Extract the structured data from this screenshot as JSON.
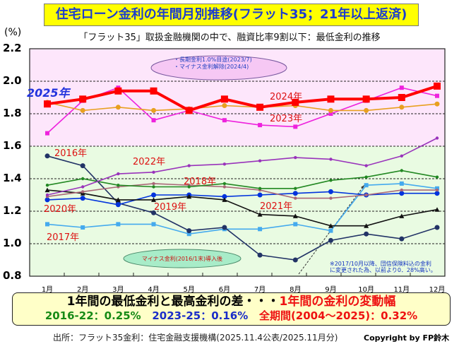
{
  "title": "住宅ローン金利の年間月別推移(フラット35；21年以上返済)",
  "subtitle": "「フラット35」取扱金融機関の中で、融資比率9割以下：最低金利の推移",
  "colors": {
    "upper_band": "#fde6fb",
    "lower_band": "#e9fbe2",
    "title_bg": "#ffff00",
    "title_text": "#1a3cd0"
  },
  "chart_data": {
    "type": "line",
    "ylabel": "(%)",
    "ylim": [
      0.8,
      2.2
    ],
    "yticks": [
      "0.8",
      "1.0",
      "1.2",
      "1.4",
      "1.6",
      "1.8",
      "2.0",
      "2.2"
    ],
    "categories": [
      "1月",
      "2月",
      "3月",
      "4月",
      "5月",
      "6月",
      "7月",
      "8月",
      "9月",
      "10月",
      "11月",
      "12月"
    ],
    "grid": true,
    "series": [
      {
        "name": "2025年",
        "color": "#ff0000",
        "marker": "square",
        "values": [
          1.86,
          1.89,
          1.94,
          1.94,
          1.82,
          1.89,
          1.84,
          1.87,
          1.89,
          1.89,
          1.9,
          1.97
        ]
      },
      {
        "name": "2024年",
        "color": "#e8a020",
        "marker": "circle",
        "values": [
          1.87,
          1.82,
          1.84,
          1.82,
          1.83,
          1.85,
          1.84,
          1.85,
          1.82,
          1.82,
          1.84,
          1.86
        ]
      },
      {
        "name": "2023年",
        "color": "#ee22dd",
        "marker": "square",
        "values": [
          1.68,
          1.88,
          1.96,
          1.76,
          1.82,
          1.76,
          1.73,
          1.72,
          1.8,
          1.88,
          1.96,
          1.91
        ]
      },
      {
        "name": "2022年",
        "color": "#9933bb",
        "marker": "plus",
        "values": [
          1.3,
          1.35,
          1.43,
          1.44,
          1.48,
          1.49,
          1.51,
          1.53,
          1.52,
          1.48,
          1.54,
          1.65
        ]
      },
      {
        "color": "#228822",
        "marker": "plus",
        "values": [
          1.36,
          1.4,
          1.36,
          1.35,
          1.35,
          1.37,
          1.34,
          1.34,
          1.39,
          1.41,
          1.45,
          1.41
        ]
      },
      {
        "name": "2018年",
        "color": "#aa6677",
        "marker": "plus",
        "values": [
          1.29,
          1.32,
          1.35,
          1.37,
          1.36,
          1.35,
          1.33,
          1.28,
          1.28,
          1.3,
          1.33,
          1.33
        ]
      },
      {
        "name": "2019年",
        "color": "#111111",
        "marker": "triangle",
        "values": [
          1.33,
          1.31,
          1.27,
          1.27,
          1.29,
          1.27,
          1.18,
          1.17,
          1.11,
          1.11,
          1.17,
          1.21
        ]
      },
      {
        "name": "2020年",
        "color": "#0033dd",
        "marker": "circle",
        "values": [
          1.27,
          1.28,
          1.24,
          1.3,
          1.3,
          1.29,
          1.3,
          1.31,
          1.32,
          1.3,
          1.31,
          1.31
        ]
      },
      {
        "name": "2016年",
        "color": "#223366",
        "marker": "circle",
        "values": [
          1.54,
          1.48,
          1.25,
          1.19,
          1.08,
          1.1,
          0.93,
          0.9,
          1.02,
          1.06,
          1.03,
          1.1
        ]
      },
      {
        "name": "2017年",
        "color": "#44aaee",
        "marker": "square",
        "values": [
          1.12,
          1.1,
          1.12,
          1.12,
          1.06,
          1.09,
          1.09,
          1.12,
          1.08,
          1.36,
          1.37,
          1.34
        ]
      }
    ],
    "year_labels": {
      "y2025": "2025年",
      "y2024": "2024年",
      "y2023": "2023年",
      "y2022": "2022年",
      "y2021": "2021年",
      "y2020": "2020年",
      "y2019": "2019年",
      "y2018": "2018年",
      "y2017": "2017年",
      "y2016": "2016年"
    },
    "annotations": {
      "upper_ellipse": [
        "・長期金利1.0%目途(2023/7)",
        "・マイナス金利解除(2024/4)"
      ],
      "lower_ellipse": "マイナス金利(2016/1末)導入後",
      "note": [
        "※2017/10月以降、団信保険料込の金利",
        "に変更された為、以前より0．28%高い。"
      ]
    }
  },
  "summary": {
    "line1_black": "1年間の最低金利と最高金利の差・・・",
    "line1_red": "1年間の金利の変動幅",
    "range_2016_22": "2016-22：0.25%",
    "range_2023_25": "2023-25：0.16%",
    "range_all": "全期間(2004～2025)：0.32%"
  },
  "source": "出所：フラット35金利：住宅金融支援機構(2025.11.4公表/2025.11月分)",
  "copyright": "Copyright by FP鈴木"
}
